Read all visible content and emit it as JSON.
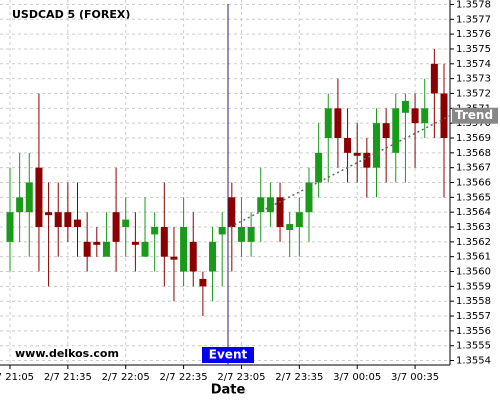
{
  "chart_data": {
    "type": "candlestick",
    "title": "USDCAD 5 (FOREX)",
    "source": "www.delkos.com",
    "xlabel": "Date",
    "categories": [
      "2/7 21:05",
      null,
      null,
      null,
      null,
      null,
      "2/7 21:35",
      null,
      null,
      null,
      null,
      null,
      "2/7 22:05",
      null,
      null,
      null,
      null,
      null,
      "2/7 22:35",
      null,
      null,
      null,
      null,
      null,
      "2/7 23:05",
      null,
      null,
      null,
      null,
      null,
      "2/7 23:35",
      null,
      null,
      null,
      null,
      null,
      "3/7 00:05",
      null,
      null,
      null,
      null,
      null,
      "3/7 00:35",
      null,
      null,
      null
    ],
    "open": [
      1.3562,
      1.3564,
      1.3564,
      1.3567,
      1.3564,
      1.3564,
      1.3564,
      1.35635,
      1.3562,
      1.3562,
      1.3561,
      1.3564,
      1.3563,
      1.3562,
      1.3561,
      1.35625,
      1.3563,
      1.3561,
      1.356,
      1.3562,
      1.35595,
      1.356,
      1.35625,
      1.3565,
      1.3562,
      1.3562,
      1.3564,
      1.3564,
      1.3565,
      1.35628,
      1.3563,
      1.3564,
      1.3566,
      1.3569,
      1.3571,
      1.3569,
      1.3568,
      1.3568,
      1.3567,
      1.357,
      1.3568,
      1.35707,
      1.3571,
      1.357,
      1.3574,
      1.3572
    ],
    "high": [
      1.3567,
      1.3568,
      1.3568,
      1.3572,
      1.3566,
      1.3566,
      1.3566,
      1.3566,
      1.3564,
      1.3563,
      1.3564,
      1.3567,
      1.3565,
      1.3564,
      1.3565,
      1.3564,
      1.3566,
      1.3563,
      1.3565,
      1.3564,
      1.356,
      1.3563,
      1.3564,
      1.3566,
      1.3565,
      1.3564,
      1.3567,
      1.3566,
      1.3566,
      1.3564,
      1.3565,
      1.3567,
      1.357,
      1.3572,
      1.3573,
      1.3571,
      1.357,
      1.3569,
      1.3571,
      1.3571,
      1.3572,
      1.3572,
      1.3572,
      1.3573,
      1.3575,
      1.3574
    ],
    "low": [
      1.356,
      1.3562,
      1.3561,
      1.356,
      1.3559,
      1.3561,
      1.3562,
      1.3561,
      1.356,
      1.3561,
      1.3561,
      1.356,
      1.3561,
      1.356,
      1.3561,
      1.356,
      1.3559,
      1.3558,
      1.3559,
      1.3559,
      1.3557,
      1.3558,
      1.3559,
      1.356,
      1.3561,
      1.3561,
      1.3562,
      1.3563,
      1.3562,
      1.3561,
      1.3561,
      1.3562,
      1.3565,
      1.3566,
      1.3567,
      1.3566,
      1.3566,
      1.3565,
      1.3565,
      1.3566,
      1.3566,
      1.3566,
      1.3567,
      1.3569,
      1.3569,
      1.3565
    ],
    "close": [
      1.3564,
      1.3565,
      1.3566,
      1.3563,
      1.35638,
      1.3563,
      1.3563,
      1.3563,
      1.3561,
      1.35618,
      1.3562,
      1.3562,
      1.35635,
      1.35618,
      1.3562,
      1.3563,
      1.3561,
      1.35608,
      1.3563,
      1.356,
      1.3559,
      1.3562,
      1.3563,
      1.3563,
      1.3563,
      1.3563,
      1.3565,
      1.3565,
      1.3563,
      1.35632,
      1.3564,
      1.3566,
      1.3568,
      1.3571,
      1.3569,
      1.3568,
      1.35678,
      1.3567,
      1.357,
      1.3569,
      1.3571,
      1.35715,
      1.357,
      1.3571,
      1.3572,
      1.3569
    ],
    "up_color": "#1a9a1a",
    "down_color": "#8b0000",
    "ylim": [
      1.35537,
      1.35783
    ],
    "yticks": [
      1.3554,
      1.3555,
      1.3556,
      1.3557,
      1.3558,
      1.3559,
      {
        "value": 1.356,
        "label": "1.3560"
      },
      1.3561,
      1.3562,
      1.3563,
      1.3564,
      1.3565,
      1.3566,
      1.3567,
      1.3568,
      1.3569,
      {
        "value": 1.357,
        "label": "1.3570"
      },
      1.3571,
      1.3572,
      1.3573,
      1.3574,
      1.3575,
      1.3576,
      1.3577,
      1.3578
    ],
    "grid": true,
    "event": {
      "label": "Event"
    },
    "trend": {
      "label": "Trend",
      "start": 1.3563,
      "end": 1.35705
    }
  }
}
